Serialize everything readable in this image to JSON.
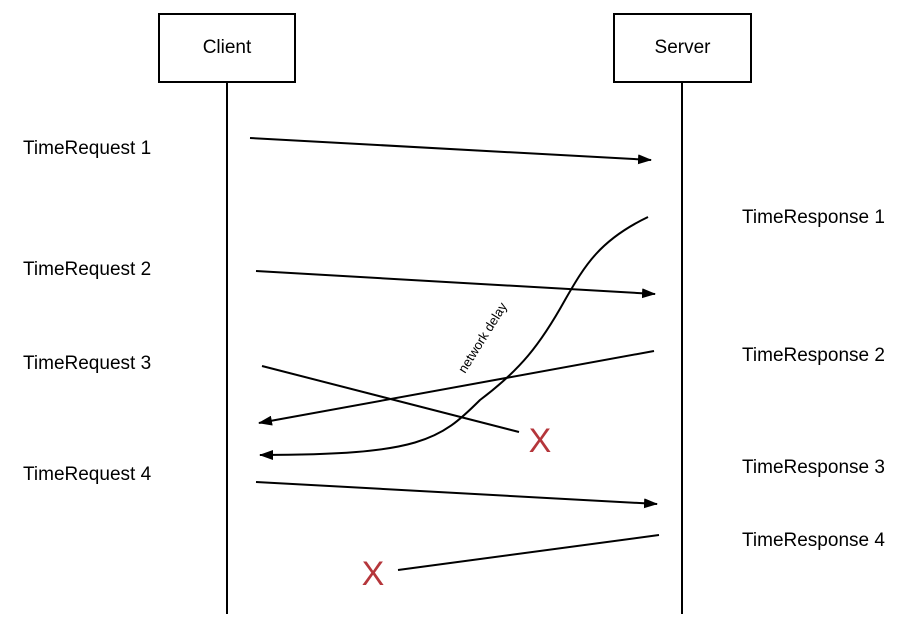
{
  "participants": {
    "client": "Client",
    "server": "Server"
  },
  "requests": [
    "TimeRequest 1",
    "TimeRequest 2",
    "TimeRequest 3",
    "TimeRequest 4"
  ],
  "responses": [
    "TimeResponse 1",
    "TimeResponse 2",
    "TimeResponse 3",
    "TimeResponse 4"
  ],
  "annotations": {
    "delay": "network delay",
    "lost_marker": "X"
  },
  "colors": {
    "lost_marker": "#b5363b",
    "line": "#000000"
  }
}
